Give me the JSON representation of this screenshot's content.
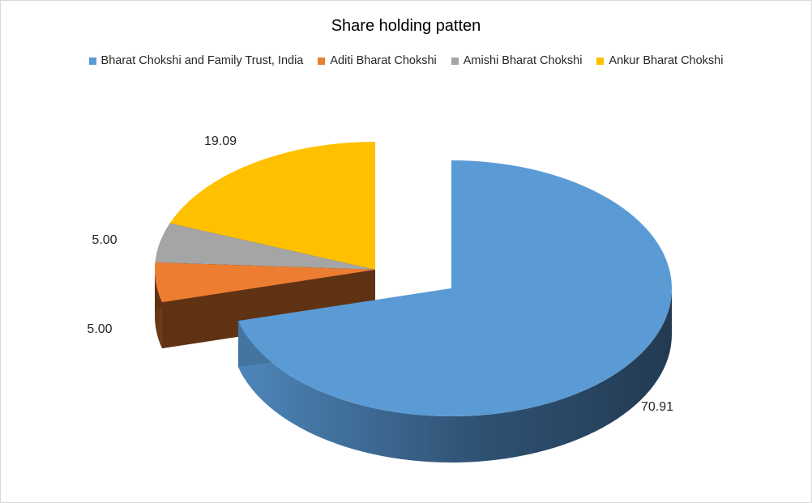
{
  "chart_data": {
    "type": "pie",
    "title": "Share holding patten",
    "legend_position": "top",
    "series": [
      {
        "name": "Bharat Chokshi and Family Trust, India",
        "value": 70.91,
        "label": "70.91",
        "color": "#5b9bd5"
      },
      {
        "name": "Aditi Bharat Chokshi",
        "value": 5.0,
        "label": "5.00",
        "color": "#ed7d31"
      },
      {
        "name": "Amishi Bharat Chokshi",
        "value": 5.0,
        "label": "5.00",
        "color": "#a5a5a5"
      },
      {
        "name": "Ankur Bharat Chokshi",
        "value": 19.09,
        "label": "19.09",
        "color": "#ffc000"
      }
    ]
  }
}
